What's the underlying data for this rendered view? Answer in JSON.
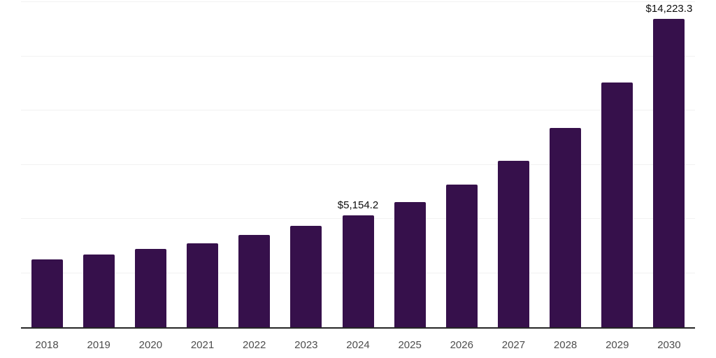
{
  "chart_data": {
    "type": "bar",
    "title": "",
    "xlabel": "",
    "ylabel": "",
    "categories": [
      "2018",
      "2019",
      "2020",
      "2021",
      "2022",
      "2023",
      "2024",
      "2025",
      "2026",
      "2027",
      "2028",
      "2029",
      "2030"
    ],
    "values": [
      3130,
      3360,
      3610,
      3870,
      4250,
      4670,
      5154.2,
      5790,
      6590,
      7680,
      9180,
      11300,
      14223.3
    ],
    "labeled_points": [
      {
        "category": "2024",
        "label": "$5,154.2"
      },
      {
        "category": "2030",
        "label": "$14,223.3"
      }
    ],
    "ylim": [
      0,
      15000
    ],
    "grid_step": 2500,
    "grid": true,
    "legend": "none",
    "colors": {
      "bar": "#36104B",
      "axis_line": "#262626",
      "gridline": "#f2f2f2",
      "tick_label": "#4d4d4d",
      "value_label": "#0d0d0d",
      "background": "#ffffff"
    }
  }
}
